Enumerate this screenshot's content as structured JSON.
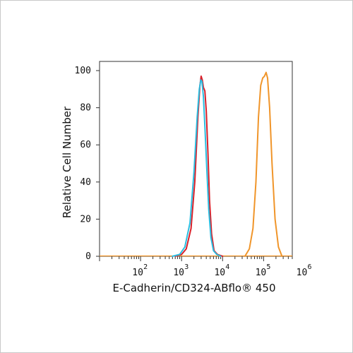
{
  "chart_data": {
    "type": "line",
    "title": "",
    "xlabel": "E-Cadherin/CD324-ABflo® 450",
    "ylabel": "Relative Cell Number",
    "xscale": "log",
    "xlim": [
      10,
      500000
    ],
    "ylim": [
      0,
      100
    ],
    "x_ticks": [
      {
        "base": "10",
        "exp": "2",
        "value": 100
      },
      {
        "base": "10",
        "exp": "3",
        "value": 1000
      },
      {
        "base": "10",
        "exp": "4",
        "value": 10000
      },
      {
        "base": "10",
        "exp": "5",
        "value": 100000
      },
      {
        "base": "10",
        "exp": "6",
        "value": 1000000
      }
    ],
    "y_ticks": [
      "0",
      "20",
      "40",
      "60",
      "80",
      "100"
    ],
    "grid": false,
    "legend": "none",
    "series": [
      {
        "color": "#d9202a",
        "x": [
          700,
          1000,
          1300,
          1700,
          2100,
          2500,
          2800,
          3000,
          3200,
          3400,
          3700,
          4000,
          4400,
          4800,
          5400,
          6200,
          7500,
          10000
        ],
        "y": [
          0,
          1,
          4,
          15,
          40,
          75,
          92,
          97,
          95,
          91,
          89,
          78,
          55,
          30,
          12,
          3,
          1,
          0
        ]
      },
      {
        "color": "#2bbde0",
        "x": [
          600,
          900,
          1200,
          1600,
          2000,
          2400,
          2700,
          2950,
          3150,
          3400,
          3700,
          4100,
          4600,
          5200,
          6000,
          7200,
          9000
        ],
        "y": [
          0,
          1,
          5,
          18,
          45,
          75,
          90,
          95,
          94,
          86,
          70,
          48,
          25,
          10,
          3,
          1,
          0
        ]
      },
      {
        "color": "#f0952a",
        "x": [
          35000,
          45000,
          55000,
          65000,
          75000,
          85000,
          95000,
          105000,
          115000,
          125000,
          140000,
          160000,
          190000,
          230000,
          280000
        ],
        "y": [
          0,
          4,
          15,
          40,
          75,
          92,
          96,
          97,
          99,
          96,
          80,
          50,
          20,
          5,
          0
        ]
      }
    ]
  }
}
